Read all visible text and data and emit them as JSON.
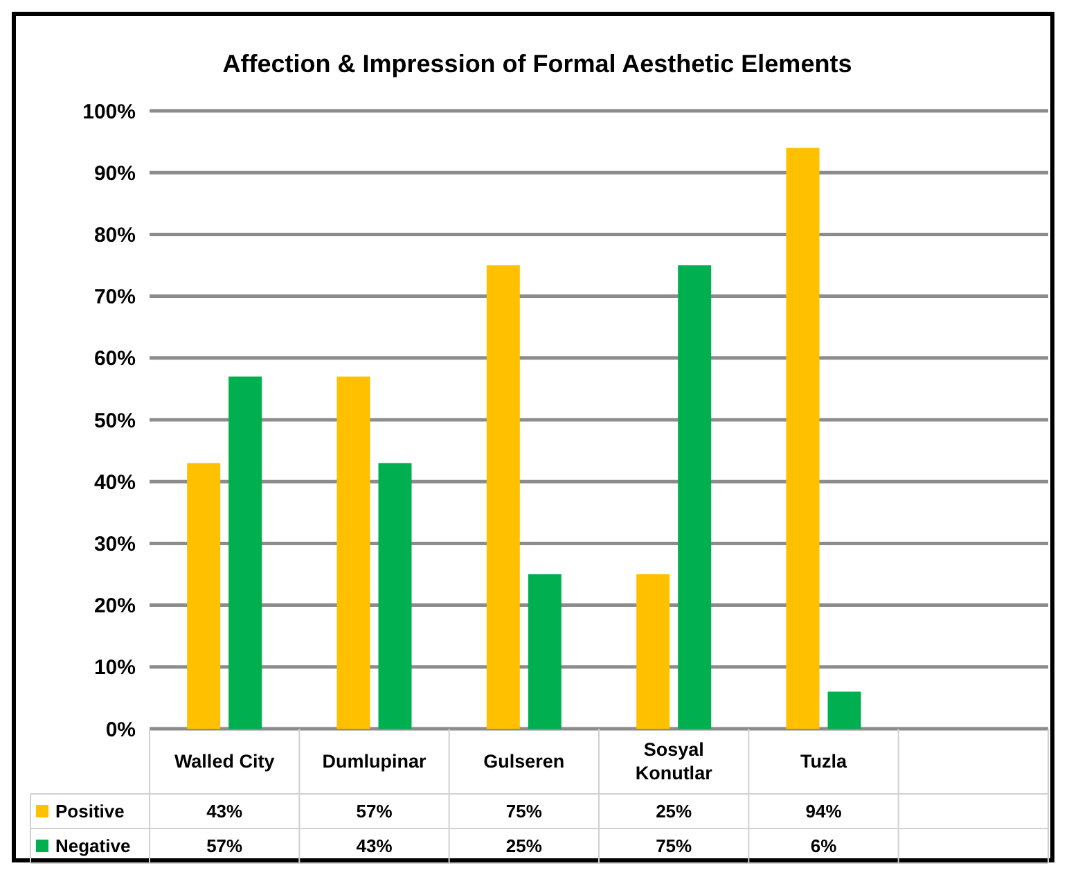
{
  "chart_data": {
    "type": "bar",
    "title": "Affection & Impression of Formal Aesthetic Elements",
    "categories": [
      "Walled City",
      "Dumlupinar",
      "Gulseren",
      "Sosyal Konutlar",
      "Tuzla",
      null
    ],
    "series": [
      {
        "name": "Positive",
        "color": "#ffc000",
        "values": [
          43,
          57,
          75,
          25,
          94,
          null
        ],
        "value_labels": [
          "43%",
          "57%",
          "75%",
          "25%",
          "94%",
          null
        ]
      },
      {
        "name": "Negative",
        "color": "#00b050",
        "values": [
          57,
          43,
          25,
          75,
          6,
          null
        ],
        "value_labels": [
          "57%",
          "43%",
          "25%",
          "75%",
          "6%",
          null
        ]
      }
    ],
    "ylim": [
      0,
      100
    ],
    "yticks": [
      {
        "value": 0,
        "label": "0%"
      },
      {
        "value": 10,
        "label": "10%"
      },
      {
        "value": 20,
        "label": "20%"
      },
      {
        "value": 30,
        "label": "30%"
      },
      {
        "value": 40,
        "label": "40%"
      },
      {
        "value": 50,
        "label": "50%"
      },
      {
        "value": 60,
        "label": "60%"
      },
      {
        "value": 70,
        "label": "70%"
      },
      {
        "value": 80,
        "label": "80%"
      },
      {
        "value": 90,
        "label": "90%"
      },
      {
        "value": 100,
        "label": "100%"
      }
    ],
    "grid": "y",
    "legend": "bottom"
  }
}
